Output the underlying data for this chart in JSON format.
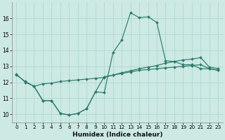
{
  "xlabel": "Humidex (Indice chaleur)",
  "background_color": "#cce9e4",
  "grid_color": "#b0d8d0",
  "line_color": "#2e7b6e",
  "xlim": [
    -0.5,
    23.5
  ],
  "ylim": [
    9.5,
    17.0
  ],
  "xticks": [
    0,
    1,
    2,
    3,
    4,
    5,
    6,
    7,
    8,
    9,
    10,
    11,
    12,
    13,
    14,
    15,
    16,
    17,
    18,
    19,
    20,
    21,
    22,
    23
  ],
  "yticks": [
    10,
    11,
    12,
    13,
    14,
    15,
    16
  ],
  "curve1_x": [
    0,
    1,
    2,
    3,
    4,
    5,
    6,
    7,
    8,
    9,
    10,
    11,
    12,
    13,
    14,
    15,
    16,
    17,
    18,
    19,
    20,
    21,
    22,
    23
  ],
  "curve1_y": [
    12.5,
    12.0,
    11.75,
    10.85,
    10.85,
    10.05,
    9.95,
    10.05,
    10.35,
    11.4,
    11.35,
    13.85,
    14.65,
    16.35,
    16.05,
    16.1,
    15.75,
    13.35,
    13.3,
    13.1,
    13.1,
    12.85,
    12.85,
    12.75
  ],
  "curve2_x": [
    0,
    1,
    2,
    3,
    4,
    5,
    6,
    7,
    8,
    9,
    10,
    11,
    12,
    13,
    14,
    15,
    16,
    17,
    18,
    19,
    20,
    21,
    22,
    23
  ],
  "curve2_y": [
    12.45,
    12.05,
    11.75,
    11.9,
    11.95,
    12.05,
    12.1,
    12.15,
    12.2,
    12.25,
    12.3,
    12.45,
    12.55,
    12.65,
    12.75,
    12.8,
    12.85,
    12.9,
    12.95,
    13.0,
    13.05,
    13.1,
    12.85,
    12.75
  ],
  "curve3_x": [
    2,
    3,
    4,
    5,
    6,
    7,
    8,
    9,
    10,
    11,
    12,
    13,
    14,
    15,
    16,
    17,
    18,
    19,
    20,
    21,
    22,
    23
  ],
  "curve3_y": [
    11.75,
    10.85,
    10.85,
    10.05,
    9.95,
    10.05,
    10.35,
    11.4,
    12.35,
    12.45,
    12.6,
    12.72,
    12.85,
    12.95,
    13.05,
    13.2,
    13.3,
    13.4,
    13.45,
    13.55,
    12.95,
    12.85
  ],
  "figsize": [
    3.2,
    2.0
  ],
  "dpi": 100
}
